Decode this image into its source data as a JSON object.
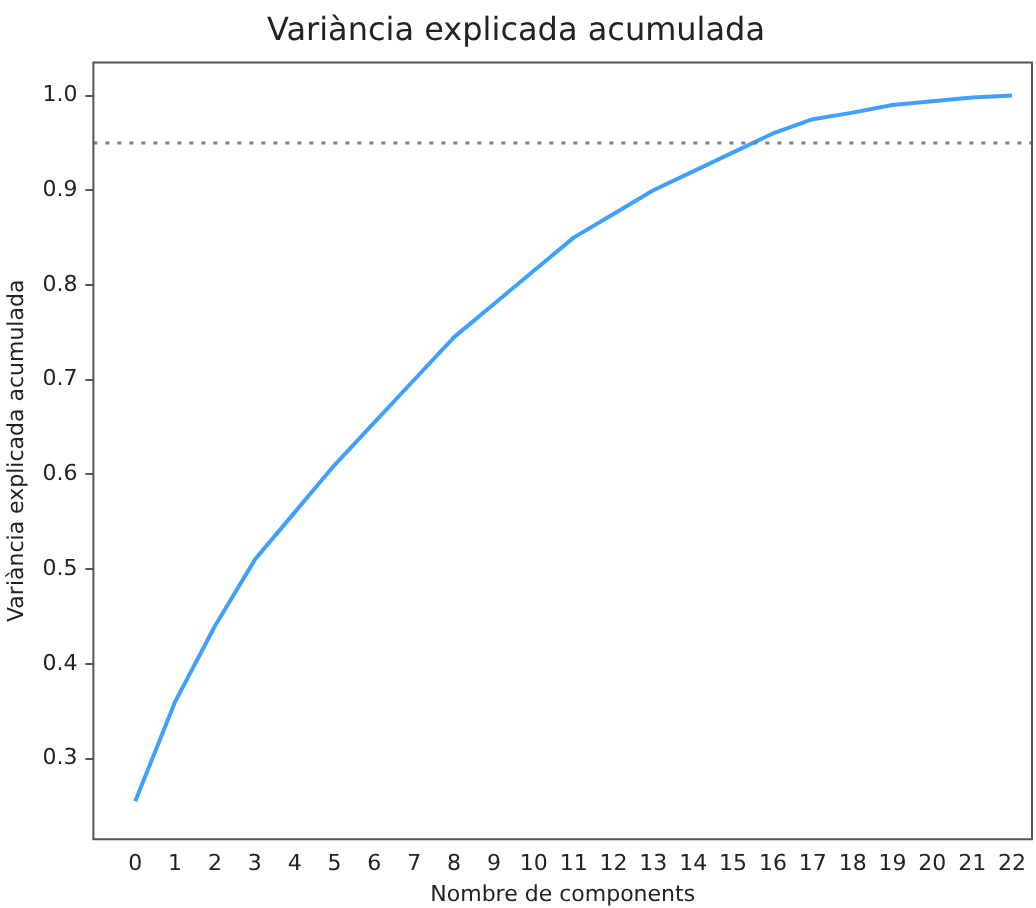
{
  "chart_data": {
    "type": "line",
    "title": "Variància explicada acumulada",
    "xlabel": "Nombre de components",
    "ylabel": "Variància explicada acumulada",
    "x": [
      0,
      1,
      2,
      3,
      4,
      5,
      6,
      7,
      8,
      9,
      10,
      11,
      12,
      13,
      14,
      15,
      16,
      17,
      18,
      19,
      20,
      21,
      22
    ],
    "series": [
      {
        "color": "#3fa0ff",
        "values": [
          0.255,
          0.36,
          0.44,
          0.51,
          0.56,
          0.61,
          0.655,
          0.7,
          0.745,
          0.78,
          0.815,
          0.85,
          0.875,
          0.9,
          0.92,
          0.94,
          0.96,
          0.975,
          0.982,
          0.99,
          0.994,
          0.998,
          1.0
        ]
      }
    ],
    "xlim": [
      -1.05,
      22.5
    ],
    "xticks": [
      0,
      1,
      2,
      3,
      4,
      5,
      6,
      7,
      8,
      9,
      10,
      11,
      12,
      13,
      14,
      15,
      16,
      17,
      18,
      19,
      20,
      21,
      22
    ],
    "ylim": [
      0.215,
      1.035
    ],
    "yticks": [
      0.3,
      0.4,
      0.5,
      0.6,
      0.7,
      0.8,
      0.9,
      {
        "value": 1.0,
        "label": "1.0"
      }
    ],
    "ref_lines": [
      {
        "axis": "y",
        "value": 0.95,
        "color": "#808080",
        "line_style": "dotted"
      }
    ],
    "grid": false,
    "legend": false,
    "marker": "none",
    "line_style": "solid"
  }
}
